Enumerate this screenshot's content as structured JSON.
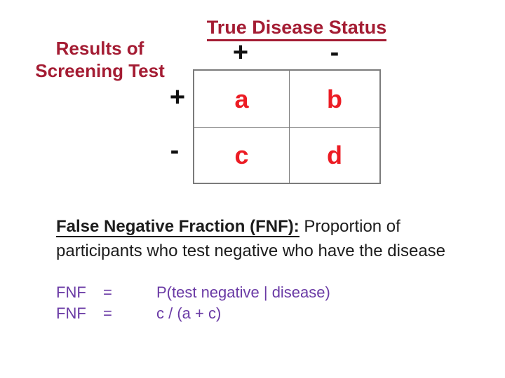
{
  "colors": {
    "dark_red": "#A41C33",
    "bright_red": "#EC1C24",
    "purple": "#6A3AA5",
    "ink": "#1C1C1C",
    "table_border": "#7B7B7B"
  },
  "matrix": {
    "column_axis_title": "True Disease Status",
    "row_axis_title_line1": "Results of",
    "row_axis_title_line2": "Screening Test",
    "column_labels": [
      "+",
      "-"
    ],
    "row_labels": [
      "+",
      "-"
    ],
    "cells": [
      [
        "a",
        "b"
      ],
      [
        "c",
        "d"
      ]
    ]
  },
  "definition": {
    "term": "False Negative Fraction (FNF):",
    "rest_line1": " Proportion of",
    "line2": "participants who test negative who have the disease"
  },
  "formulas": [
    {
      "lhs": "FNF",
      "eq": "=",
      "rhs": "P(test negative | disease)"
    },
    {
      "lhs": "FNF",
      "eq": "=",
      "rhs": "c / (a + c)"
    }
  ]
}
